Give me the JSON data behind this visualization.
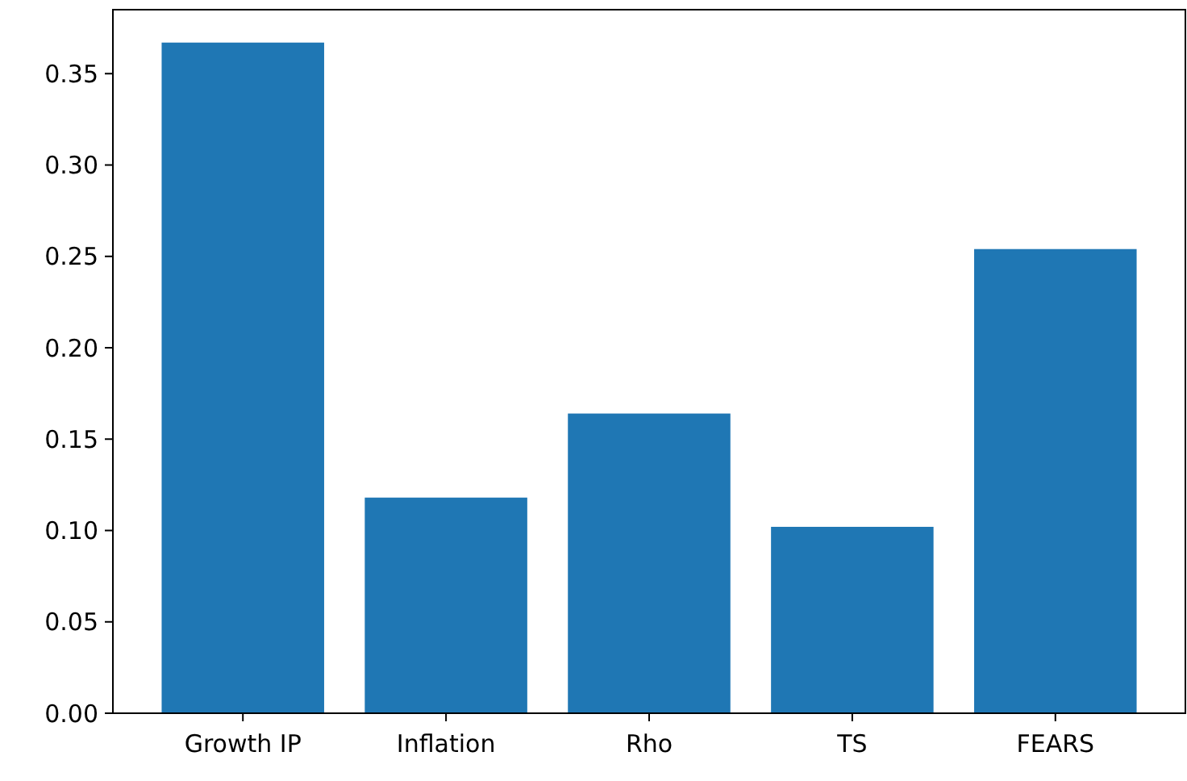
{
  "chart_data": {
    "type": "bar",
    "categories": [
      "Growth IP",
      "Inflation",
      "Rho",
      "TS",
      "FEARS"
    ],
    "values": [
      0.367,
      0.118,
      0.164,
      0.102,
      0.254
    ],
    "color": "#1f77b4",
    "ylim": [
      0,
      0.385
    ],
    "yticks": [
      {
        "value": 0,
        "label": "0.00"
      },
      {
        "value": 0.05,
        "label": "0.05"
      },
      {
        "value": 0.1,
        "label": "0.10"
      },
      {
        "value": 0.15,
        "label": "0.15"
      },
      {
        "value": 0.2,
        "label": "0.20"
      },
      {
        "value": 0.25,
        "label": "0.25"
      },
      {
        "value": 0.3,
        "label": "0.30"
      },
      {
        "value": 0.35,
        "label": "0.35"
      }
    ]
  }
}
